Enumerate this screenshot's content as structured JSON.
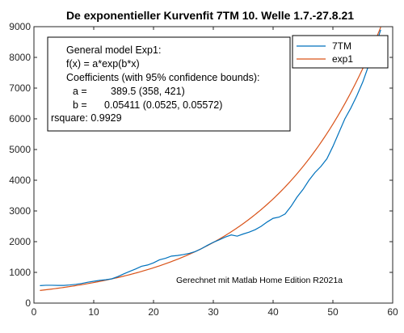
{
  "chart_data": {
    "type": "line",
    "title": "De exponentieller Kurvenfit 7TM 10. Welle 1.7.-27.8.21",
    "xlabel": "",
    "ylabel": "",
    "xlim": [
      0,
      60
    ],
    "ylim": [
      0,
      9000
    ],
    "xticks": [
      "0",
      "10",
      "20",
      "30",
      "40",
      "50",
      "60"
    ],
    "yticks": [
      "0",
      "1000",
      "2000",
      "3000",
      "4000",
      "5000",
      "6000",
      "7000",
      "8000",
      "9000"
    ],
    "grid": false,
    "legend_position": "top-right",
    "series": [
      {
        "name": "7TM",
        "color": "#0072BD",
        "x": [
          1,
          2,
          3,
          4,
          5,
          6,
          7,
          8,
          9,
          10,
          11,
          12,
          13,
          14,
          15,
          16,
          17,
          18,
          19,
          20,
          21,
          22,
          23,
          24,
          25,
          26,
          27,
          28,
          29,
          30,
          31,
          32,
          33,
          34,
          35,
          36,
          37,
          38,
          39,
          40,
          41,
          42,
          43,
          44,
          45,
          46,
          47,
          48,
          49,
          50,
          51,
          52,
          53,
          54,
          55,
          56,
          57,
          58
        ],
        "y": [
          570,
          580,
          580,
          575,
          575,
          590,
          610,
          640,
          680,
          710,
          740,
          760,
          790,
          860,
          950,
          1030,
          1110,
          1200,
          1240,
          1310,
          1410,
          1460,
          1530,
          1550,
          1580,
          1620,
          1680,
          1770,
          1880,
          1980,
          2060,
          2150,
          2220,
          2180,
          2250,
          2310,
          2390,
          2500,
          2640,
          2760,
          2800,
          2900,
          3150,
          3450,
          3700,
          4000,
          4250,
          4450,
          4700,
          5100,
          5550,
          6000,
          6350,
          6750,
          7200,
          7750,
          8300,
          8900
        ]
      },
      {
        "name": "exp1",
        "color": "#D95319",
        "fit": {
          "a": 389.5,
          "b": 0.05411,
          "x_from": 1,
          "x_to": 58
        }
      }
    ],
    "annotation": {
      "lines": [
        "General model Exp1:",
        "f(x) = a*exp(b*x)",
        "Coefficients (with 95% confidence bounds):",
        "a =",
        "389.5  (358, 421)",
        "b =",
        "0.05411  (0.0525, 0.05572)",
        "rsquare:  0.9929"
      ]
    },
    "credit": "Gerechnet mit Matlab Home Edition R2021a"
  }
}
